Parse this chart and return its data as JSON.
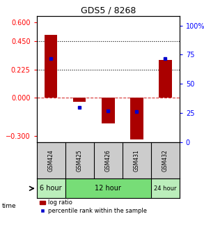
{
  "title": "GDS5 / 8268",
  "samples": [
    "GSM424",
    "GSM425",
    "GSM426",
    "GSM431",
    "GSM432"
  ],
  "log_ratio": [
    0.5,
    -0.03,
    -0.2,
    -0.33,
    0.3
  ],
  "percentile_rank": [
    72,
    30,
    27,
    26,
    72
  ],
  "ylim_left": [
    -0.35,
    0.65
  ],
  "ylim_right": [
    0,
    108.3
  ],
  "yticks_left": [
    -0.3,
    0,
    0.225,
    0.45,
    0.6
  ],
  "yticks_right": [
    0,
    25,
    50,
    75,
    100
  ],
  "bar_color": "#aa0000",
  "dot_color": "#0000cc",
  "dotted_lines": [
    0.45,
    0.225
  ],
  "background_color": "#ffffff",
  "label_bg": "#cccccc",
  "group_colors": [
    "#bbeebb",
    "#77dd77",
    "#bbeebb"
  ],
  "group_labels": [
    "6 hour",
    "12 hour",
    "24 hour"
  ],
  "group_starts": [
    0,
    1,
    4
  ],
  "group_ends": [
    1,
    4,
    5
  ],
  "legend_labels": [
    "log ratio",
    "percentile rank within the sample"
  ]
}
